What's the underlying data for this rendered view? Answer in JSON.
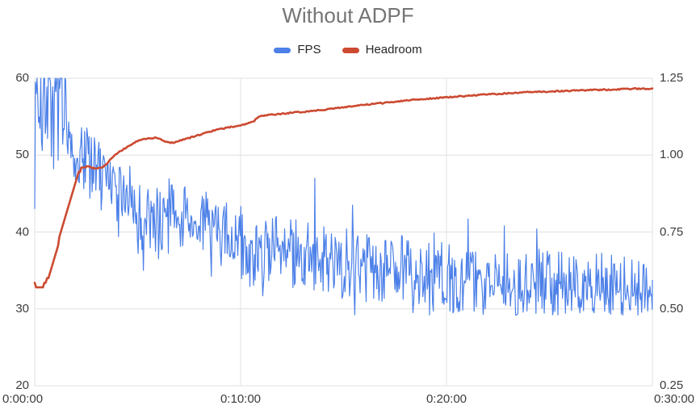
{
  "chart_data": {
    "type": "line",
    "title": "Without ADPF",
    "title_color": "#757575",
    "background": "#ffffff",
    "grid": {
      "color": "#e0e0e0",
      "horizontal": true,
      "vertical": true
    },
    "legend": {
      "position": "top",
      "items": [
        "FPS",
        "Headroom"
      ]
    },
    "x_axis": {
      "tick_labels": [
        "0:00:00",
        "0:10:00",
        "0:20:00",
        "0:30:00"
      ],
      "tick_times_s": [
        0,
        600,
        1200,
        1800
      ],
      "range_s": [
        0,
        1800
      ]
    },
    "y_left": {
      "series": "FPS",
      "tick_labels": [
        "60",
        "50",
        "40",
        "30",
        "20"
      ],
      "tick_values": [
        60,
        50,
        40,
        30,
        20
      ],
      "range": [
        20,
        60
      ]
    },
    "y_right": {
      "series": "Headroom",
      "tick_labels": [
        "1.25",
        "1.00",
        "0.75",
        "0.50",
        "0.25"
      ],
      "tick_values": [
        1.25,
        1.0,
        0.75,
        0.5,
        0.25
      ],
      "range": [
        0.25,
        1.25
      ]
    },
    "series": [
      {
        "name": "FPS",
        "axis": "left",
        "color": "#4c80e8",
        "line_width": 1.2,
        "style": "noisy",
        "sample_step_s": 2.2,
        "noise_seed": 20,
        "clip_max": 60,
        "clip_min": 29.2,
        "envelope_t_center_up_down": [
          [
            0,
            59,
            4,
            11
          ],
          [
            88,
            58.5,
            4,
            11
          ],
          [
            98,
            54.5,
            4,
            6
          ],
          [
            112,
            51.5,
            4,
            5
          ],
          [
            140,
            50.5,
            4,
            5
          ],
          [
            170,
            49,
            4,
            6
          ],
          [
            200,
            47.5,
            3.5,
            5
          ],
          [
            230,
            45.8,
            3.5,
            4.5
          ],
          [
            260,
            45,
            3.5,
            5
          ],
          [
            290,
            42.8,
            4,
            4.5
          ],
          [
            320,
            41.8,
            4.5,
            5
          ],
          [
            350,
            41.5,
            4,
            5
          ],
          [
            380,
            42,
            4.5,
            4
          ],
          [
            410,
            42.5,
            4,
            4
          ],
          [
            440,
            41.6,
            4.5,
            4.5
          ],
          [
            470,
            41.5,
            4,
            4
          ],
          [
            500,
            41,
            4.5,
            4.5
          ],
          [
            530,
            40.5,
            4,
            4
          ],
          [
            560,
            40,
            4,
            4
          ],
          [
            590,
            39.5,
            4,
            5
          ],
          [
            620,
            39,
            4.5,
            6
          ],
          [
            650,
            38.5,
            4,
            5.5
          ],
          [
            680,
            38.2,
            4.5,
            5
          ],
          [
            710,
            38,
            4,
            5
          ],
          [
            740,
            37.6,
            4,
            5
          ],
          [
            770,
            37.2,
            4.5,
            4.5
          ],
          [
            800,
            37,
            4.5,
            4
          ],
          [
            830,
            36.7,
            4,
            5
          ],
          [
            860,
            36.5,
            4,
            5
          ],
          [
            890,
            36.3,
            4,
            5
          ],
          [
            920,
            36,
            4.5,
            5
          ],
          [
            950,
            35.7,
            5,
            5
          ],
          [
            980,
            35.5,
            4.5,
            4.5
          ],
          [
            1010,
            35.2,
            4,
            5
          ],
          [
            1040,
            35,
            4.5,
            4.5
          ],
          [
            1070,
            34.7,
            5,
            4
          ],
          [
            1100,
            34.4,
            4.5,
            4
          ],
          [
            1130,
            34.2,
            4,
            4.5
          ],
          [
            1160,
            34,
            4.5,
            4.5
          ],
          [
            1190,
            34,
            5,
            5
          ],
          [
            1220,
            33.8,
            5,
            4.5
          ],
          [
            1250,
            33.5,
            5,
            4
          ],
          [
            1280,
            33.3,
            4.5,
            4
          ],
          [
            1310,
            33.1,
            4.5,
            4.5
          ],
          [
            1340,
            33,
            4.5,
            4
          ],
          [
            1370,
            33,
            5,
            4
          ],
          [
            1400,
            32.9,
            5,
            4
          ],
          [
            1430,
            32.8,
            5.5,
            3.5
          ],
          [
            1460,
            32.8,
            5.5,
            3.5
          ],
          [
            1490,
            32.7,
            5,
            4
          ],
          [
            1520,
            32.6,
            5,
            3.5
          ],
          [
            1550,
            32.5,
            5,
            3.5
          ],
          [
            1580,
            32.5,
            5,
            3
          ],
          [
            1610,
            32.4,
            5,
            3.5
          ],
          [
            1640,
            32.4,
            5,
            3
          ],
          [
            1670,
            32.3,
            5.5,
            3.5
          ],
          [
            1700,
            32.3,
            5,
            3
          ],
          [
            1730,
            32.2,
            5,
            3.5
          ],
          [
            1760,
            32.2,
            4.5,
            3
          ],
          [
            1800,
            32.2,
            4.5,
            3
          ]
        ],
        "forced_points_t_v": [
          [
            0,
            43
          ],
          [
            245,
            39.4
          ],
          [
            360,
            36.5
          ],
          [
            628,
            32.9
          ],
          [
            816,
            47
          ],
          [
            927,
            43.5
          ],
          [
            1263,
            41.7
          ],
          [
            1369,
            40.8
          ],
          [
            1463,
            40.4
          ]
        ]
      },
      {
        "name": "Headroom",
        "axis": "right",
        "color": "#cc4a31",
        "line_width": 2.6,
        "style": "stepped-smooth",
        "sample_step_s": 4,
        "wiggle": 0.002,
        "wiggle_seed": 99,
        "step_quantize_until_s": 150,
        "step_quantize": 0.015,
        "points_t_v": [
          [
            0,
            0.578
          ],
          [
            12,
            0.574
          ],
          [
            22,
            0.572
          ],
          [
            30,
            0.58
          ],
          [
            40,
            0.605
          ],
          [
            50,
            0.64
          ],
          [
            60,
            0.68
          ],
          [
            70,
            0.72
          ],
          [
            80,
            0.76
          ],
          [
            90,
            0.8
          ],
          [
            100,
            0.84
          ],
          [
            108,
            0.875
          ],
          [
            116,
            0.905
          ],
          [
            124,
            0.93
          ],
          [
            132,
            0.95
          ],
          [
            140,
            0.962
          ],
          [
            148,
            0.967
          ],
          [
            158,
            0.962
          ],
          [
            172,
            0.958
          ],
          [
            188,
            0.958
          ],
          [
            200,
            0.963
          ],
          [
            210,
            0.972
          ],
          [
            220,
            0.985
          ],
          [
            230,
            0.997
          ],
          [
            240,
            1.005
          ],
          [
            255,
            1.016
          ],
          [
            270,
            1.027
          ],
          [
            285,
            1.037
          ],
          [
            300,
            1.046
          ],
          [
            315,
            1.051
          ],
          [
            330,
            1.054
          ],
          [
            345,
            1.056
          ],
          [
            360,
            1.055
          ],
          [
            375,
            1.046
          ],
          [
            390,
            1.041
          ],
          [
            405,
            1.041
          ],
          [
            420,
            1.046
          ],
          [
            435,
            1.052
          ],
          [
            450,
            1.056
          ],
          [
            470,
            1.062
          ],
          [
            490,
            1.07
          ],
          [
            510,
            1.077
          ],
          [
            530,
            1.082
          ],
          [
            550,
            1.087
          ],
          [
            570,
            1.091
          ],
          [
            590,
            1.095
          ],
          [
            610,
            1.1
          ],
          [
            625,
            1.104
          ],
          [
            640,
            1.112
          ],
          [
            652,
            1.124
          ],
          [
            665,
            1.128
          ],
          [
            680,
            1.13
          ],
          [
            700,
            1.132
          ],
          [
            725,
            1.135
          ],
          [
            750,
            1.138
          ],
          [
            775,
            1.14
          ],
          [
            800,
            1.143
          ],
          [
            825,
            1.146
          ],
          [
            850,
            1.149
          ],
          [
            875,
            1.152
          ],
          [
            900,
            1.156
          ],
          [
            925,
            1.159
          ],
          [
            950,
            1.162
          ],
          [
            975,
            1.165
          ],
          [
            1000,
            1.168
          ],
          [
            1025,
            1.171
          ],
          [
            1050,
            1.174
          ],
          [
            1075,
            1.177
          ],
          [
            1100,
            1.18
          ],
          [
            1125,
            1.182
          ],
          [
            1150,
            1.184
          ],
          [
            1175,
            1.186
          ],
          [
            1200,
            1.188
          ],
          [
            1225,
            1.19
          ],
          [
            1250,
            1.192
          ],
          [
            1275,
            1.194
          ],
          [
            1300,
            1.196
          ],
          [
            1325,
            1.198
          ],
          [
            1350,
            1.199
          ],
          [
            1375,
            1.201
          ],
          [
            1400,
            1.202
          ],
          [
            1425,
            1.204
          ],
          [
            1450,
            1.205
          ],
          [
            1475,
            1.206
          ],
          [
            1500,
            1.207
          ],
          [
            1525,
            1.208
          ],
          [
            1550,
            1.209
          ],
          [
            1575,
            1.21
          ],
          [
            1600,
            1.211
          ],
          [
            1625,
            1.212
          ],
          [
            1650,
            1.212
          ],
          [
            1675,
            1.213
          ],
          [
            1700,
            1.214
          ],
          [
            1725,
            1.215
          ],
          [
            1750,
            1.216
          ],
          [
            1775,
            1.216
          ],
          [
            1800,
            1.217
          ]
        ]
      }
    ]
  }
}
